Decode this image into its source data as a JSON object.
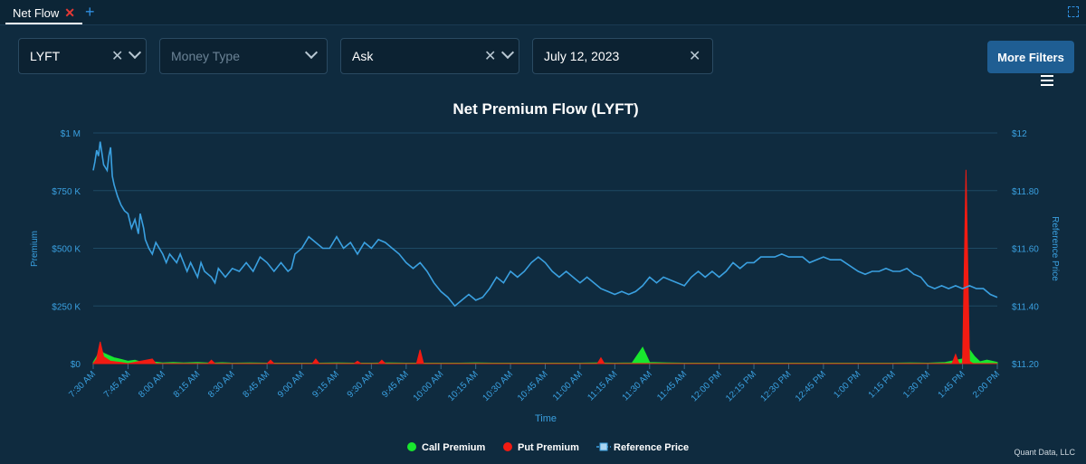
{
  "tabs": [
    {
      "label": "Net Flow",
      "close_icon": "close-icon"
    }
  ],
  "filters": {
    "ticker": {
      "value": "LYFT"
    },
    "money_type": {
      "placeholder": "Money Type"
    },
    "side": {
      "value": "Ask"
    },
    "date": {
      "value": "July 12, 2023"
    },
    "more_filters_label": "More Filters"
  },
  "colors": {
    "call": "#19e62e",
    "put": "#f21b12",
    "price": "#3aa0e0",
    "grid": "#1e4a64",
    "axis_text": "#3aa0e0"
  },
  "chart_data": {
    "type": "area",
    "title": "Net Premium Flow (LYFT)",
    "xlabel": "Time",
    "ylabel": "Premium",
    "y2label": "Reference Price",
    "ylim": [
      0,
      1000000
    ],
    "y2lim": [
      11.2,
      12
    ],
    "yticks": [
      "$0",
      "$250 K",
      "$500 K",
      "$750 K",
      "$1 M"
    ],
    "y2ticks": [
      "$11.20",
      "$11.40",
      "$11.60",
      "$11.80",
      "$12"
    ],
    "categories": [
      "7:30 AM",
      "7:45 AM",
      "8:00 AM",
      "8:15 AM",
      "8:30 AM",
      "8:45 AM",
      "9:00 AM",
      "9:15 AM",
      "9:30 AM",
      "9:45 AM",
      "10:00 AM",
      "10:15 AM",
      "10:30 AM",
      "10:45 AM",
      "11:00 AM",
      "11:15 AM",
      "11:30 AM",
      "11:45 AM",
      "12:00 PM",
      "12:15 PM",
      "12:30 PM",
      "12:45 PM",
      "1:00 PM",
      "1:15 PM",
      "1:30 PM",
      "1:45 PM",
      "2:00 PM"
    ],
    "series": [
      {
        "name": "Call Premium",
        "color": "#19e62e",
        "points": [
          [
            0,
            5000
          ],
          [
            0.1,
            30000
          ],
          [
            0.2,
            60000
          ],
          [
            0.3,
            45000
          ],
          [
            0.45,
            35000
          ],
          [
            0.6,
            25000
          ],
          [
            0.8,
            18000
          ],
          [
            1,
            10000
          ],
          [
            1.2,
            15000
          ],
          [
            1.4,
            5000
          ],
          [
            1.7,
            8000
          ],
          [
            2,
            3000
          ],
          [
            2.3,
            5000
          ],
          [
            2.6,
            3000
          ],
          [
            3,
            5000
          ],
          [
            3.4,
            2000
          ],
          [
            3.7,
            4000
          ],
          [
            4,
            2000
          ],
          [
            4.5,
            3000
          ],
          [
            5,
            2000
          ],
          [
            5.5,
            2000
          ],
          [
            6,
            2000
          ],
          [
            6.5,
            2000
          ],
          [
            7,
            3000
          ],
          [
            7.5,
            2000
          ],
          [
            8,
            2000
          ],
          [
            8.5,
            3000
          ],
          [
            9,
            2000
          ],
          [
            9.5,
            2000
          ],
          [
            10,
            2000
          ],
          [
            10.5,
            2000
          ],
          [
            11,
            3000
          ],
          [
            11.5,
            2000
          ],
          [
            12,
            2000
          ],
          [
            12.5,
            2000
          ],
          [
            13,
            2000
          ],
          [
            13.5,
            2000
          ],
          [
            14,
            2000
          ],
          [
            14.5,
            3000
          ],
          [
            15,
            2000
          ],
          [
            15.5,
            3000
          ],
          [
            15.8,
            70000
          ],
          [
            16,
            5000
          ],
          [
            16.5,
            3000
          ],
          [
            17,
            2000
          ],
          [
            17.5,
            2000
          ],
          [
            18,
            2000
          ],
          [
            18.5,
            2000
          ],
          [
            19,
            2000
          ],
          [
            19.5,
            2000
          ],
          [
            20,
            2000
          ],
          [
            20.5,
            2000
          ],
          [
            21,
            2000
          ],
          [
            21.5,
            2000
          ],
          [
            22,
            2000
          ],
          [
            22.5,
            2000
          ],
          [
            23,
            2000
          ],
          [
            23.5,
            3000
          ],
          [
            24,
            2000
          ],
          [
            24.5,
            5000
          ],
          [
            25,
            20000
          ],
          [
            25.1,
            170000
          ],
          [
            25.2,
            60000
          ],
          [
            25.35,
            30000
          ],
          [
            25.5,
            8000
          ],
          [
            25.7,
            15000
          ],
          [
            26,
            5000
          ]
        ]
      },
      {
        "name": "Put Premium",
        "color": "#f21b12",
        "points": [
          [
            0,
            0
          ],
          [
            0.1,
            20000
          ],
          [
            0.2,
            95000
          ],
          [
            0.3,
            30000
          ],
          [
            0.5,
            10000
          ],
          [
            0.8,
            5000
          ],
          [
            1,
            0
          ],
          [
            1.7,
            20000
          ],
          [
            1.8,
            0
          ],
          [
            3.3,
            0
          ],
          [
            3.4,
            15000
          ],
          [
            3.5,
            0
          ],
          [
            5,
            0
          ],
          [
            5.1,
            15000
          ],
          [
            5.2,
            0
          ],
          [
            6.3,
            0
          ],
          [
            6.4,
            20000
          ],
          [
            6.5,
            0
          ],
          [
            7.5,
            0
          ],
          [
            7.6,
            10000
          ],
          [
            7.7,
            0
          ],
          [
            8.2,
            0
          ],
          [
            8.3,
            15000
          ],
          [
            8.4,
            0
          ],
          [
            9.3,
            0
          ],
          [
            9.4,
            60000
          ],
          [
            9.5,
            0
          ],
          [
            14.5,
            0
          ],
          [
            14.6,
            25000
          ],
          [
            14.7,
            0
          ],
          [
            24.7,
            0
          ],
          [
            24.8,
            40000
          ],
          [
            24.9,
            0
          ],
          [
            25.0,
            0
          ],
          [
            25.1,
            840000
          ],
          [
            25.2,
            10000
          ],
          [
            25.3,
            0
          ],
          [
            26,
            0
          ]
        ]
      },
      {
        "name": "Reference Price",
        "color": "#3aa0e0",
        "points": [
          [
            0,
            11.87
          ],
          [
            0.05,
            11.9
          ],
          [
            0.1,
            11.94
          ],
          [
            0.15,
            11.92
          ],
          [
            0.2,
            11.97
          ],
          [
            0.25,
            11.93
          ],
          [
            0.3,
            11.89
          ],
          [
            0.4,
            11.87
          ],
          [
            0.45,
            11.92
          ],
          [
            0.5,
            11.95
          ],
          [
            0.55,
            11.85
          ],
          [
            0.6,
            11.82
          ],
          [
            0.7,
            11.78
          ],
          [
            0.8,
            11.75
          ],
          [
            0.9,
            11.73
          ],
          [
            1,
            11.72
          ],
          [
            1.1,
            11.67
          ],
          [
            1.2,
            11.7
          ],
          [
            1.3,
            11.65
          ],
          [
            1.35,
            11.72
          ],
          [
            1.45,
            11.67
          ],
          [
            1.5,
            11.63
          ],
          [
            1.6,
            11.6
          ],
          [
            1.7,
            11.58
          ],
          [
            1.8,
            11.62
          ],
          [
            1.9,
            11.6
          ],
          [
            2,
            11.58
          ],
          [
            2.1,
            11.55
          ],
          [
            2.2,
            11.58
          ],
          [
            2.4,
            11.55
          ],
          [
            2.5,
            11.58
          ],
          [
            2.7,
            11.52
          ],
          [
            2.8,
            11.55
          ],
          [
            3,
            11.5
          ],
          [
            3.1,
            11.55
          ],
          [
            3.2,
            11.52
          ],
          [
            3.4,
            11.5
          ],
          [
            3.5,
            11.48
          ],
          [
            3.6,
            11.53
          ],
          [
            3.8,
            11.5
          ],
          [
            4,
            11.53
          ],
          [
            4.2,
            11.52
          ],
          [
            4.4,
            11.55
          ],
          [
            4.6,
            11.52
          ],
          [
            4.8,
            11.57
          ],
          [
            5,
            11.55
          ],
          [
            5.2,
            11.52
          ],
          [
            5.4,
            11.55
          ],
          [
            5.6,
            11.52
          ],
          [
            5.7,
            11.53
          ],
          [
            5.8,
            11.58
          ],
          [
            6,
            11.6
          ],
          [
            6.2,
            11.64
          ],
          [
            6.4,
            11.62
          ],
          [
            6.6,
            11.6
          ],
          [
            6.8,
            11.6
          ],
          [
            7,
            11.64
          ],
          [
            7.2,
            11.6
          ],
          [
            7.4,
            11.62
          ],
          [
            7.6,
            11.58
          ],
          [
            7.8,
            11.62
          ],
          [
            8,
            11.6
          ],
          [
            8.2,
            11.63
          ],
          [
            8.4,
            11.62
          ],
          [
            8.6,
            11.6
          ],
          [
            8.8,
            11.58
          ],
          [
            9,
            11.55
          ],
          [
            9.2,
            11.53
          ],
          [
            9.4,
            11.55
          ],
          [
            9.6,
            11.52
          ],
          [
            9.8,
            11.48
          ],
          [
            10,
            11.45
          ],
          [
            10.2,
            11.43
          ],
          [
            10.4,
            11.4
          ],
          [
            10.6,
            11.42
          ],
          [
            10.8,
            11.44
          ],
          [
            11,
            11.42
          ],
          [
            11.2,
            11.43
          ],
          [
            11.4,
            11.46
          ],
          [
            11.6,
            11.5
          ],
          [
            11.8,
            11.48
          ],
          [
            12,
            11.52
          ],
          [
            12.2,
            11.5
          ],
          [
            12.4,
            11.52
          ],
          [
            12.6,
            11.55
          ],
          [
            12.8,
            11.57
          ],
          [
            13,
            11.55
          ],
          [
            13.2,
            11.52
          ],
          [
            13.4,
            11.5
          ],
          [
            13.6,
            11.52
          ],
          [
            13.8,
            11.5
          ],
          [
            14,
            11.48
          ],
          [
            14.2,
            11.5
          ],
          [
            14.4,
            11.48
          ],
          [
            14.6,
            11.46
          ],
          [
            14.8,
            11.45
          ],
          [
            15,
            11.44
          ],
          [
            15.2,
            11.45
          ],
          [
            15.4,
            11.44
          ],
          [
            15.6,
            11.45
          ],
          [
            15.8,
            11.47
          ],
          [
            16,
            11.5
          ],
          [
            16.2,
            11.48
          ],
          [
            16.4,
            11.5
          ],
          [
            16.6,
            11.49
          ],
          [
            16.8,
            11.48
          ],
          [
            17,
            11.47
          ],
          [
            17.2,
            11.5
          ],
          [
            17.4,
            11.52
          ],
          [
            17.6,
            11.5
          ],
          [
            17.8,
            11.52
          ],
          [
            18,
            11.5
          ],
          [
            18.2,
            11.52
          ],
          [
            18.4,
            11.55
          ],
          [
            18.6,
            11.53
          ],
          [
            18.8,
            11.55
          ],
          [
            19,
            11.55
          ],
          [
            19.2,
            11.57
          ],
          [
            19.4,
            11.57
          ],
          [
            19.6,
            11.57
          ],
          [
            19.8,
            11.58
          ],
          [
            20,
            11.57
          ],
          [
            20.4,
            11.57
          ],
          [
            20.6,
            11.55
          ],
          [
            20.8,
            11.56
          ],
          [
            21,
            11.57
          ],
          [
            21.2,
            11.56
          ],
          [
            21.5,
            11.56
          ],
          [
            22,
            11.52
          ],
          [
            22.2,
            11.51
          ],
          [
            22.4,
            11.52
          ],
          [
            22.6,
            11.52
          ],
          [
            22.8,
            11.53
          ],
          [
            23,
            11.52
          ],
          [
            23.2,
            11.52
          ],
          [
            23.4,
            11.53
          ],
          [
            23.6,
            11.51
          ],
          [
            23.8,
            11.5
          ],
          [
            24,
            11.47
          ],
          [
            24.2,
            11.46
          ],
          [
            24.4,
            11.47
          ],
          [
            24.6,
            11.46
          ],
          [
            24.8,
            11.47
          ],
          [
            25,
            11.46
          ],
          [
            25.2,
            11.47
          ],
          [
            25.4,
            11.46
          ],
          [
            25.6,
            11.46
          ],
          [
            25.8,
            11.44
          ],
          [
            26,
            11.43
          ]
        ]
      }
    ]
  },
  "legend": [
    {
      "label": "Call Premium",
      "color": "#19e62e",
      "shape": "dot"
    },
    {
      "label": "Put Premium",
      "color": "#f21b12",
      "shape": "dot"
    },
    {
      "label": "Reference Price",
      "color": "#3aa0e0",
      "shape": "dashed-square"
    }
  ],
  "credits": "Quant Data, LLC"
}
